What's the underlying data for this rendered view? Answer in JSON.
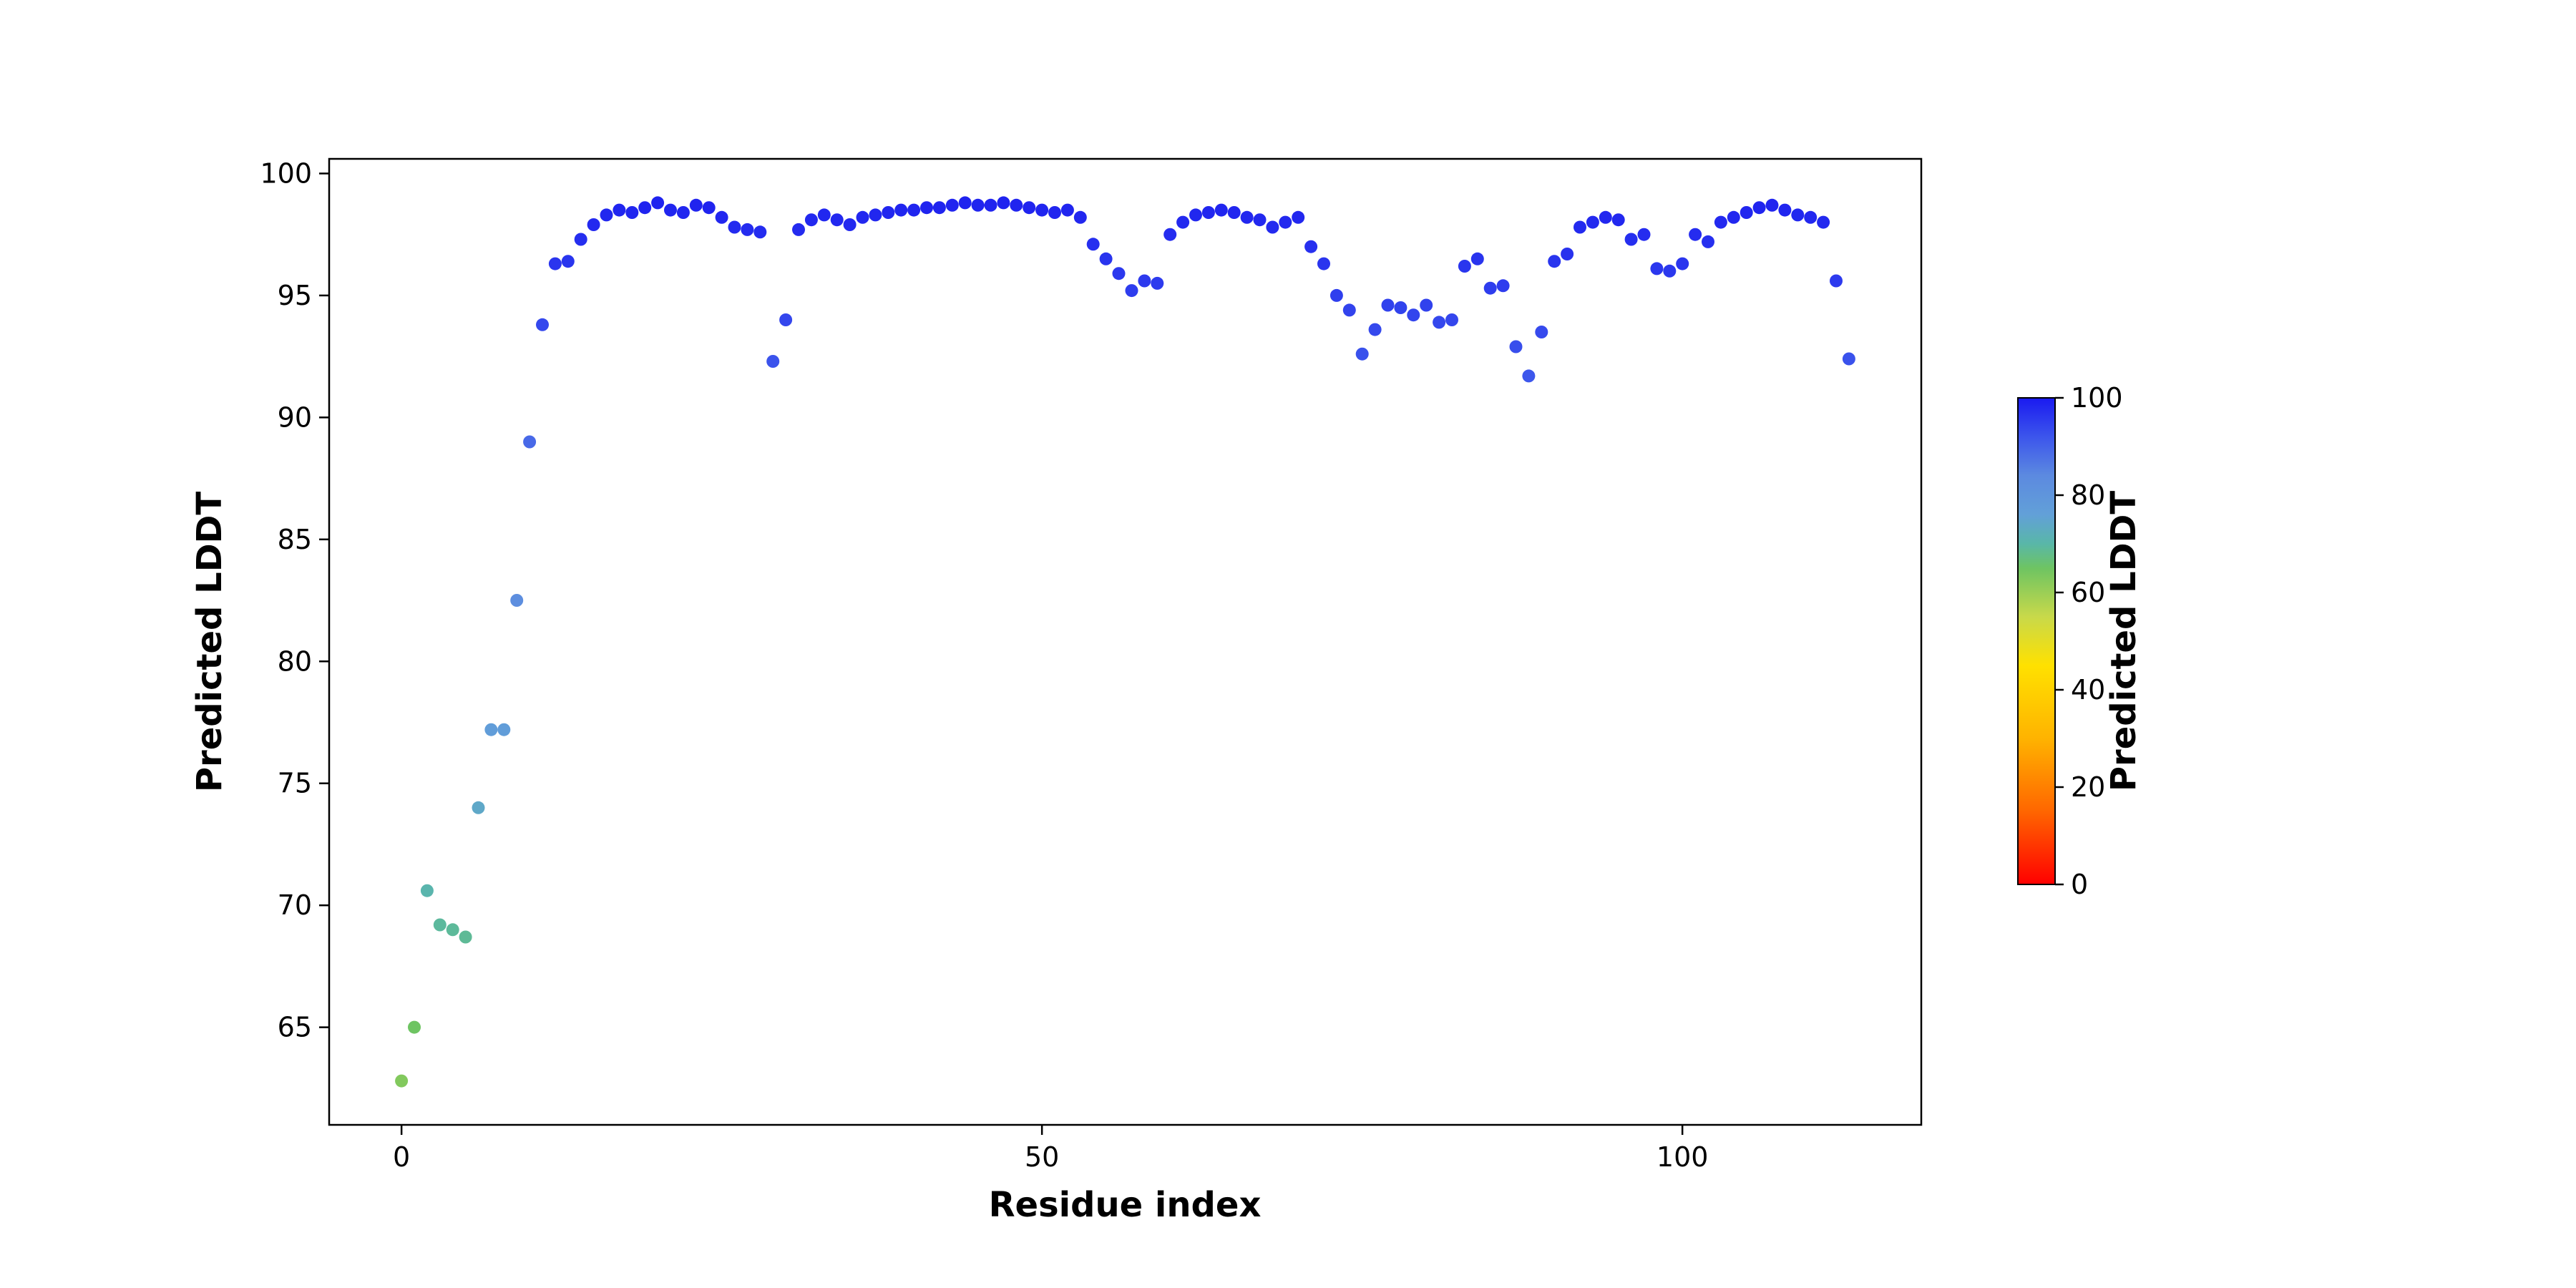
{
  "chart_data": {
    "type": "scatter",
    "title": "",
    "xlabel": "Residue index",
    "ylabel": "Predicted LDDT",
    "grid": false,
    "x": [
      0,
      1,
      2,
      3,
      4,
      5,
      6,
      7,
      8,
      9,
      10,
      11,
      12,
      13,
      14,
      15,
      16,
      17,
      18,
      19,
      20,
      21,
      22,
      23,
      24,
      25,
      26,
      27,
      28,
      29,
      30,
      31,
      32,
      33,
      34,
      35,
      36,
      37,
      38,
      39,
      40,
      41,
      42,
      43,
      44,
      45,
      46,
      47,
      48,
      49,
      50,
      51,
      52,
      53,
      54,
      55,
      56,
      57,
      58,
      59,
      60,
      61,
      62,
      63,
      64,
      65,
      66,
      67,
      68,
      69,
      70,
      71,
      72,
      73,
      74,
      75,
      76,
      77,
      78,
      79,
      80,
      81,
      82,
      83,
      84,
      85,
      86,
      87,
      88,
      89,
      90,
      91,
      92,
      93,
      94,
      95,
      96,
      97,
      98,
      99,
      100,
      101,
      102,
      103,
      104,
      105,
      106,
      107,
      108,
      109,
      110,
      111,
      112,
      113
    ],
    "y": [
      62.8,
      65.0,
      70.6,
      69.2,
      69.0,
      68.7,
      74.0,
      77.2,
      77.2,
      82.5,
      89.0,
      93.8,
      96.3,
      96.4,
      97.3,
      97.9,
      98.3,
      98.5,
      98.4,
      98.6,
      98.8,
      98.5,
      98.4,
      98.7,
      98.6,
      98.2,
      97.8,
      97.7,
      97.6,
      92.3,
      94.0,
      97.7,
      98.1,
      98.3,
      98.1,
      97.9,
      98.2,
      98.3,
      98.4,
      98.5,
      98.5,
      98.6,
      98.6,
      98.7,
      98.8,
      98.7,
      98.7,
      98.8,
      98.7,
      98.6,
      98.5,
      98.4,
      98.5,
      98.2,
      97.1,
      96.5,
      95.9,
      95.2,
      95.6,
      95.5,
      97.5,
      98.0,
      98.3,
      98.4,
      98.5,
      98.4,
      98.2,
      98.1,
      97.8,
      98.0,
      98.2,
      97.0,
      96.3,
      95.0,
      94.4,
      92.6,
      93.6,
      94.6,
      94.5,
      94.2,
      94.6,
      93.9,
      94.0,
      96.2,
      96.5,
      95.3,
      95.4,
      92.9,
      91.7,
      93.5,
      96.4,
      96.7,
      97.8,
      98.0,
      98.2,
      98.1,
      97.3,
      97.5,
      96.1,
      96.0,
      96.3,
      97.5,
      97.2,
      98.0,
      98.2,
      98.4,
      98.6,
      98.7,
      98.5,
      98.3,
      98.2,
      98.0,
      95.6,
      92.4
    ],
    "xlim": [
      -5.65,
      118.65
    ],
    "ylim": [
      61.0,
      100.6
    ],
    "xticks": [
      0,
      50,
      100
    ],
    "yticks": [
      65,
      70,
      75,
      80,
      85,
      90,
      95,
      100
    ],
    "marker": {
      "radius_px": 9
    },
    "color_by": "y",
    "colormap": {
      "name": "plddt-rainbow-reversed",
      "domain": [
        0,
        100
      ],
      "stops": [
        {
          "t": 0.0,
          "color": "#ff0000"
        },
        {
          "t": 0.15,
          "color": "#ff6600"
        },
        {
          "t": 0.3,
          "color": "#ffb300"
        },
        {
          "t": 0.45,
          "color": "#ffe100"
        },
        {
          "t": 0.55,
          "color": "#c8d94a"
        },
        {
          "t": 0.65,
          "color": "#6ec462"
        },
        {
          "t": 0.7,
          "color": "#59b7a8"
        },
        {
          "t": 0.76,
          "color": "#62a0d8"
        },
        {
          "t": 0.84,
          "color": "#5c8ae0"
        },
        {
          "t": 0.92,
          "color": "#3c55ec"
        },
        {
          "t": 1.0,
          "color": "#1a1af0"
        }
      ]
    },
    "colorbar": {
      "label": "Predicted LDDT",
      "range": [
        0,
        100
      ],
      "ticks": [
        0,
        20,
        40,
        60,
        80,
        100
      ],
      "position": "right"
    },
    "frame_color": "#000000",
    "background_color": "#ffffff"
  }
}
